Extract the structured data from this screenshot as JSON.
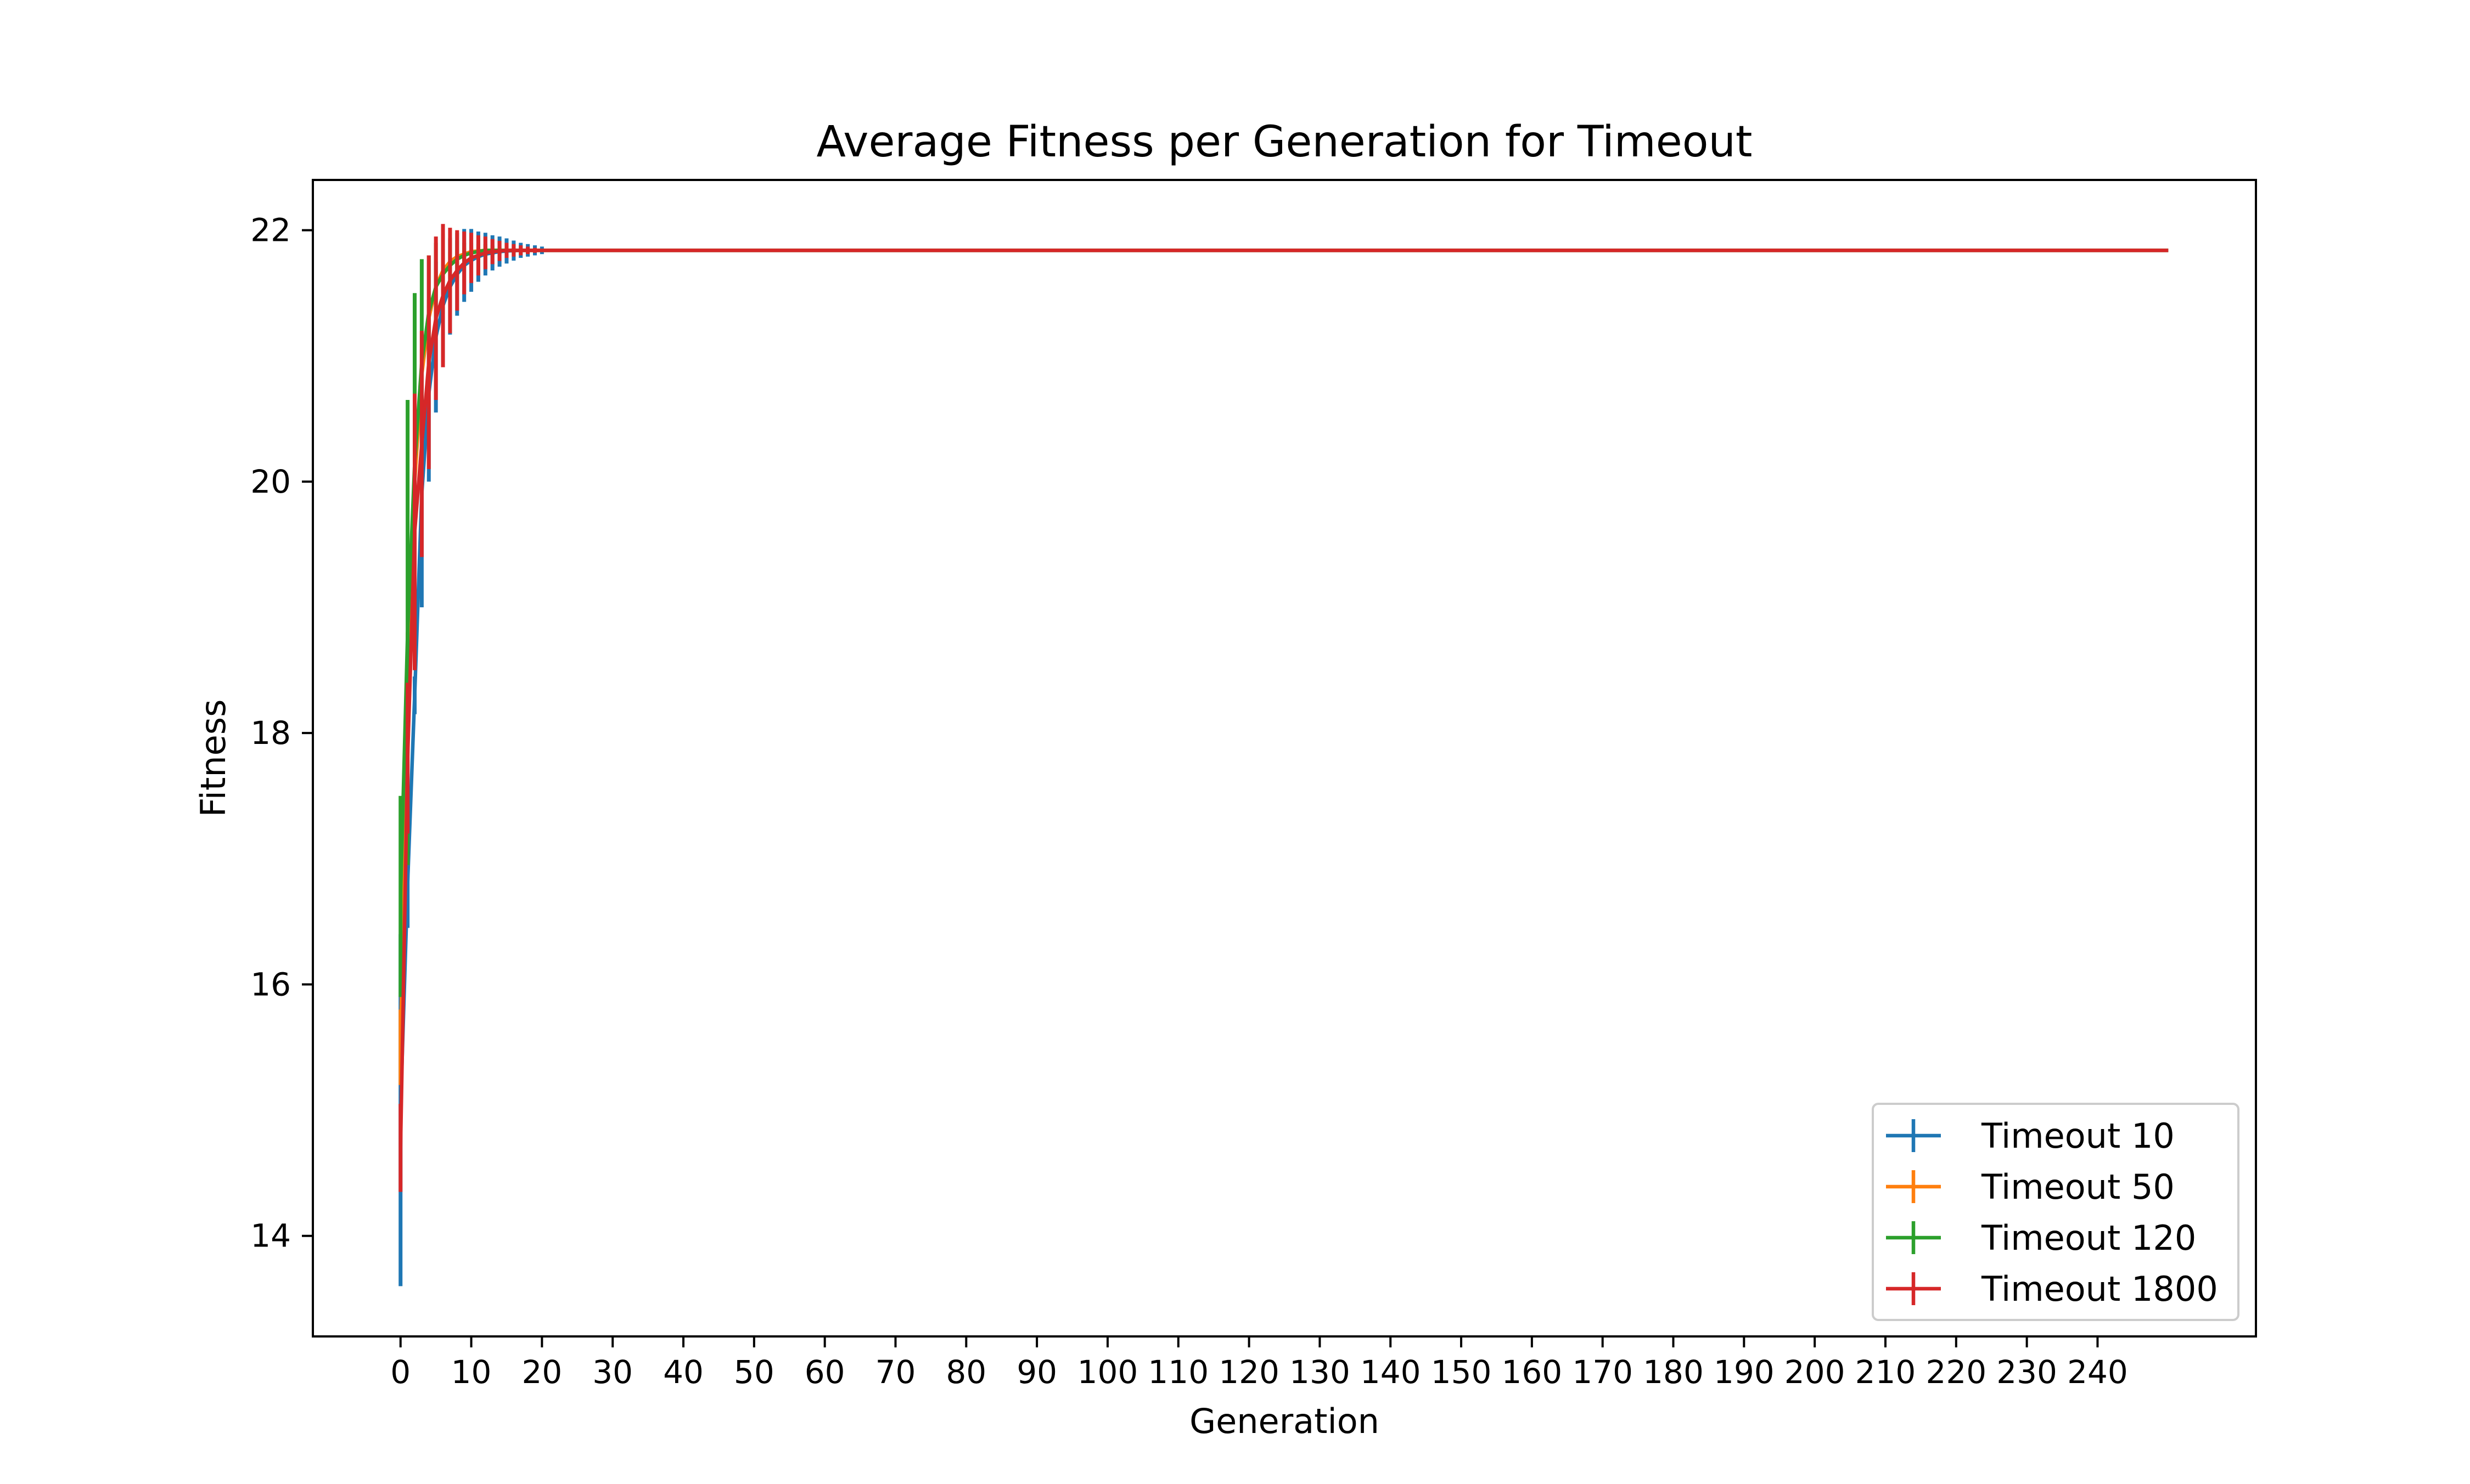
{
  "chart_data": {
    "type": "line",
    "title": "Average Fitness per Generation for Timeout",
    "xlabel": "Generation",
    "ylabel": "Fitness",
    "xlim": [
      -12.4,
      262.4
    ],
    "ylim": [
      13.2,
      22.4
    ],
    "xticks": [
      0,
      10,
      20,
      30,
      40,
      50,
      60,
      70,
      80,
      90,
      100,
      110,
      120,
      130,
      140,
      150,
      160,
      170,
      180,
      190,
      200,
      210,
      220,
      230,
      240
    ],
    "xtick_labels": [
      "0",
      "10",
      "20",
      "30",
      "40",
      "50",
      "60",
      "70",
      "80",
      "90",
      "100",
      "110",
      "120",
      "130",
      "140",
      "150",
      "160",
      "170",
      "180",
      "190",
      "200",
      "210",
      "220",
      "230",
      "240"
    ],
    "yticks": [
      14,
      16,
      18,
      20,
      22
    ],
    "ytick_labels": [
      "14",
      "16",
      "18",
      "20",
      "22"
    ],
    "grid": false,
    "legend_position": "lower-right",
    "error_bars": true,
    "series": [
      {
        "name": "Timeout 10",
        "color": "#1f77b4",
        "x_max": 250,
        "plateau": 21.84,
        "mean": [
          15.0,
          16.8,
          18.3,
          19.9,
          20.7,
          21.15,
          21.4,
          21.55,
          21.65,
          21.72,
          21.76,
          21.79,
          21.81,
          21.82,
          21.83,
          21.835,
          21.838,
          21.84,
          21.84,
          21.84,
          21.84
        ],
        "error": [
          1.4,
          0.35,
          0.15,
          0.9,
          0.7,
          0.6,
          0.45,
          0.38,
          0.33,
          0.29,
          0.25,
          0.2,
          0.17,
          0.14,
          0.12,
          0.1,
          0.08,
          0.06,
          0.05,
          0.04,
          0.03
        ]
      },
      {
        "name": "Timeout 50",
        "color": "#ff7f0e",
        "x_max": 250,
        "plateau": 21.84,
        "mean": [
          15.5,
          18.5,
          20.0,
          20.85,
          21.3,
          21.55,
          21.68,
          21.75,
          21.79,
          21.81,
          21.83,
          21.835,
          21.84,
          21.84,
          21.84,
          21.84,
          21.84,
          21.84,
          21.84,
          21.84,
          21.84
        ],
        "error": [
          0.3,
          0.3,
          0.25,
          0.2,
          0.15,
          0.12,
          0.1,
          0.08,
          0.06,
          0.05,
          0.04,
          0.03,
          0.02,
          0.02,
          0.01,
          0.01,
          0.01,
          0.01,
          0.01,
          0.01,
          0.01
        ]
      },
      {
        "name": "Timeout 120",
        "color": "#2ca02c",
        "x_max": 250,
        "plateau": 21.84,
        "mean": [
          16.7,
          18.8,
          20.15,
          20.95,
          21.35,
          21.55,
          21.65,
          21.72,
          21.77,
          21.8,
          21.82,
          21.83,
          21.84,
          21.84,
          21.84,
          21.84,
          21.84,
          21.84,
          21.84,
          21.84,
          21.84
        ],
        "error": [
          0.8,
          1.85,
          1.35,
          0.82,
          0.45,
          0.35,
          0.32,
          0.22,
          0.15,
          0.1,
          0.08,
          0.06,
          0.05,
          0.04,
          0.03,
          0.02,
          0.02,
          0.01,
          0.01,
          0.01,
          0.01
        ]
      },
      {
        "name": "Timeout 1800",
        "color": "#d62728",
        "x_max": 250,
        "plateau": 21.84,
        "mean": [
          14.7,
          17.8,
          19.6,
          20.3,
          20.95,
          21.3,
          21.48,
          21.6,
          21.68,
          21.74,
          21.78,
          21.8,
          21.82,
          21.83,
          21.835,
          21.84,
          21.84,
          21.84,
          21.84,
          21.84,
          21.84
        ],
        "error": [
          0.35,
          0.6,
          1.1,
          0.9,
          0.85,
          0.65,
          0.57,
          0.42,
          0.32,
          0.25,
          0.2,
          0.16,
          0.13,
          0.1,
          0.08,
          0.06,
          0.05,
          0.04,
          0.03,
          0.02,
          0.01
        ]
      }
    ]
  }
}
